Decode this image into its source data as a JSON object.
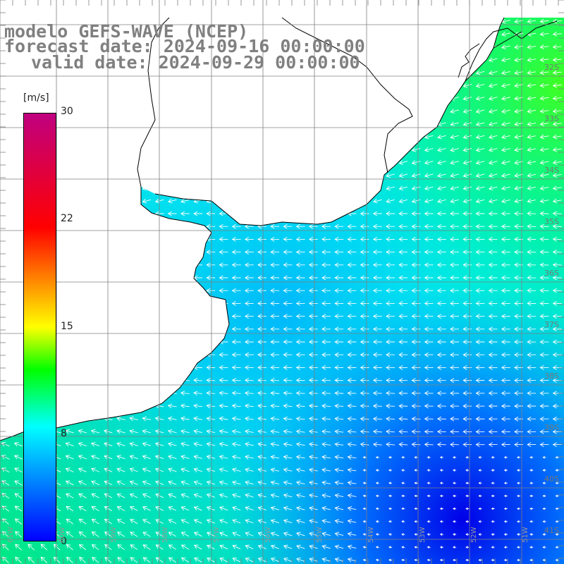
{
  "title": {
    "line1": "modelo GEFS-WAVE (NCEP)",
    "line2": "forecast date: 2024-09-16 00:00:00",
    "line3": "valid date: 2024-09-29 00:00:00"
  },
  "colorbar": {
    "unit": "[m/s]",
    "ticks": [
      "30",
      "22",
      "15",
      "8",
      "0"
    ],
    "min": 0,
    "max": 30,
    "stops": [
      {
        "value": 0,
        "color": "#0000ff"
      },
      {
        "value": 8,
        "color": "#00ffff"
      },
      {
        "value": 12,
        "color": "#00ff00"
      },
      {
        "value": 15,
        "color": "#ffff00"
      },
      {
        "value": 22,
        "color": "#ff0000"
      },
      {
        "value": 30,
        "color": "#c00080"
      }
    ]
  },
  "map": {
    "lat_labels": [
      "32S",
      "33S",
      "34S",
      "35S",
      "36S",
      "37S",
      "38S",
      "39S",
      "40S",
      "41S"
    ],
    "lon_labels": [
      "61W",
      "60W",
      "59W",
      "58W",
      "57W",
      "56W",
      "55W",
      "54W",
      "53W",
      "52W",
      "51W"
    ],
    "land_color": "#ffffff",
    "coast_color": "#000000",
    "grid_color": "#808080",
    "arrow_color": "#ffffff"
  }
}
